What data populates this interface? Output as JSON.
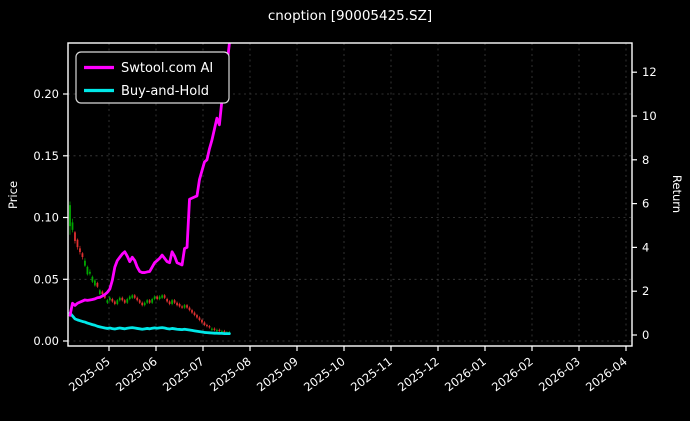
{
  "title": "cnoption [90005425.SZ]",
  "colors": {
    "background": "#000000",
    "text": "#ffffff",
    "grid": "#3f3f3f",
    "spine": "#ffffff",
    "candle_up": "#00a800",
    "candle_down": "#e03030",
    "strategy_line": "#ff00ff",
    "buyhold_line": "#00e8e8",
    "legend_border": "#d9d9d9"
  },
  "legend": {
    "position": "upper-left",
    "items": [
      {
        "label": "Swtool.com AI",
        "color": "#ff00ff"
      },
      {
        "label": "Buy-and-Hold",
        "color": "#00e8e8"
      }
    ]
  },
  "axes": {
    "left_label": "Price",
    "right_label": "Return",
    "left_ticks": [
      "0.00",
      "0.05",
      "0.10",
      "0.15",
      "0.20"
    ],
    "left_tick_values": [
      0.0,
      0.05,
      0.1,
      0.15,
      0.2
    ],
    "right_ticks": [
      "0",
      "2",
      "4",
      "6",
      "8",
      "10",
      "12"
    ],
    "right_tick_values": [
      0,
      2,
      4,
      6,
      8,
      10,
      12
    ],
    "x_ticks": [
      "2025-05",
      "2025-06",
      "2025-07",
      "2025-08",
      "2025-09",
      "2025-10",
      "2025-11",
      "2025-12",
      "2026-01",
      "2026-02",
      "2026-03",
      "2026-04"
    ]
  },
  "chart_data": {
    "type": "candlestick+line",
    "title": "cnoption [90005425.SZ]",
    "xlabel": "",
    "x_tick_labels": [
      "2025-05",
      "2025-06",
      "2025-07",
      "2025-08",
      "2025-09",
      "2025-10",
      "2025-11",
      "2025-12",
      "2026-01",
      "2026-02",
      "2026-03",
      "2026-04"
    ],
    "y_left": {
      "label": "Price",
      "ticks": [
        0.0,
        0.05,
        0.1,
        0.15,
        0.2
      ],
      "lim": [
        -0.004,
        0.241
      ]
    },
    "y_right": {
      "label": "Return",
      "ticks": [
        0,
        2,
        4,
        6,
        8,
        10,
        12
      ],
      "lim": [
        -0.5,
        13.8
      ]
    },
    "grid": true,
    "legend_position": "upper left",
    "data_span_note": "price candles and both return lines span approx 2025-04-22 to 2025-07-25; axis extends to 2026-04",
    "candles_ohlc": [
      [
        0.093,
        0.113,
        0.086,
        0.11
      ],
      [
        0.09,
        0.099,
        0.088,
        0.096
      ],
      [
        0.088,
        0.089,
        0.079,
        0.081
      ],
      [
        0.082,
        0.083,
        0.074,
        0.076
      ],
      [
        0.075,
        0.077,
        0.07,
        0.072
      ],
      [
        0.071,
        0.072,
        0.066,
        0.068
      ],
      [
        0.061,
        0.067,
        0.06,
        0.065
      ],
      [
        0.054,
        0.061,
        0.053,
        0.06
      ],
      [
        0.0545,
        0.058,
        0.053,
        0.056
      ],
      [
        0.048,
        0.053,
        0.047,
        0.052
      ],
      [
        0.045,
        0.05,
        0.044,
        0.049
      ],
      [
        0.047,
        0.048,
        0.043,
        0.044
      ],
      [
        0.038,
        0.042,
        0.037,
        0.041
      ],
      [
        0.04,
        0.041,
        0.037,
        0.038
      ],
      [
        0.037,
        0.038,
        0.034,
        0.035
      ],
      [
        0.031,
        0.034,
        0.03,
        0.033
      ],
      [
        0.033,
        0.036,
        0.032,
        0.035
      ],
      [
        0.034,
        0.035,
        0.031,
        0.032
      ],
      [
        0.032,
        0.033,
        0.029,
        0.03
      ],
      [
        0.03,
        0.034,
        0.029,
        0.033
      ],
      [
        0.033,
        0.036,
        0.032,
        0.035
      ],
      [
        0.035,
        0.036,
        0.032,
        0.033
      ],
      [
        0.033,
        0.034,
        0.03,
        0.031
      ],
      [
        0.031,
        0.035,
        0.03,
        0.034
      ],
      [
        0.034,
        0.037,
        0.033,
        0.036
      ],
      [
        0.035,
        0.038,
        0.034,
        0.037
      ],
      [
        0.037,
        0.038,
        0.034,
        0.035
      ],
      [
        0.035,
        0.036,
        0.032,
        0.033
      ],
      [
        0.033,
        0.034,
        0.03,
        0.031
      ],
      [
        0.031,
        0.032,
        0.028,
        0.029
      ],
      [
        0.029,
        0.032,
        0.028,
        0.031
      ],
      [
        0.031,
        0.034,
        0.03,
        0.033
      ],
      [
        0.033,
        0.034,
        0.03,
        0.031
      ],
      [
        0.031,
        0.035,
        0.03,
        0.034
      ],
      [
        0.034,
        0.037,
        0.033,
        0.036
      ],
      [
        0.036,
        0.037,
        0.033,
        0.034
      ],
      [
        0.034,
        0.037,
        0.033,
        0.036
      ],
      [
        0.035,
        0.038,
        0.034,
        0.037
      ],
      [
        0.037,
        0.038,
        0.034,
        0.035
      ],
      [
        0.034,
        0.035,
        0.031,
        0.032
      ],
      [
        0.032,
        0.033,
        0.029,
        0.03
      ],
      [
        0.03,
        0.034,
        0.029,
        0.033
      ],
      [
        0.033,
        0.034,
        0.03,
        0.031
      ],
      [
        0.031,
        0.032,
        0.028,
        0.029
      ],
      [
        0.03,
        0.031,
        0.027,
        0.028
      ],
      [
        0.028,
        0.029,
        0.026,
        0.027
      ],
      [
        0.027,
        0.03,
        0.026,
        0.029
      ],
      [
        0.029,
        0.03,
        0.026,
        0.027
      ],
      [
        0.027,
        0.028,
        0.024,
        0.025
      ],
      [
        0.025,
        0.026,
        0.022,
        0.023
      ],
      [
        0.023,
        0.024,
        0.02,
        0.021
      ],
      [
        0.021,
        0.022,
        0.018,
        0.019
      ],
      [
        0.019,
        0.02,
        0.016,
        0.017
      ],
      [
        0.017,
        0.018,
        0.014,
        0.015
      ],
      [
        0.015,
        0.016,
        0.012,
        0.013
      ],
      [
        0.013,
        0.014,
        0.011,
        0.012
      ],
      [
        0.012,
        0.013,
        0.01,
        0.011
      ],
      [
        0.009,
        0.011,
        0.008,
        0.01
      ],
      [
        0.01,
        0.011,
        0.008,
        0.009
      ],
      [
        0.008,
        0.01,
        0.007,
        0.009
      ],
      [
        0.009,
        0.01,
        0.007,
        0.008
      ],
      [
        0.007,
        0.009,
        0.006,
        0.008
      ],
      [
        0.008,
        0.009,
        0.006,
        0.007
      ],
      [
        0.006,
        0.008,
        0.005,
        0.007
      ],
      [
        0.0065,
        0.008,
        0.006,
        0.007
      ]
    ],
    "series": [
      {
        "name": "Swtool.com AI",
        "axis": "right",
        "color": "#ff00ff",
        "values": [
          0.9,
          1.45,
          1.35,
          1.45,
          1.5,
          1.55,
          1.6,
          1.58,
          1.6,
          1.62,
          1.65,
          1.7,
          1.72,
          1.78,
          1.85,
          1.95,
          2.1,
          2.5,
          3.1,
          3.4,
          3.55,
          3.7,
          3.8,
          3.6,
          3.35,
          3.55,
          3.4,
          3.1,
          2.9,
          2.85,
          2.85,
          2.88,
          2.9,
          3.1,
          3.3,
          3.4,
          3.5,
          3.65,
          3.5,
          3.35,
          3.3,
          3.8,
          3.6,
          3.3,
          3.25,
          3.2,
          3.95,
          4.0,
          6.2,
          6.25,
          6.3,
          6.35,
          7.1,
          7.5,
          7.9,
          8.0,
          8.5,
          8.9,
          9.4,
          9.9,
          9.6,
          10.7,
          11.5,
          12.3,
          13.3
        ]
      },
      {
        "name": "Buy-and-Hold",
        "axis": "right",
        "color": "#00e8e8",
        "values": [
          1.0,
          0.873,
          0.736,
          0.691,
          0.655,
          0.618,
          0.591,
          0.545,
          0.509,
          0.473,
          0.445,
          0.4,
          0.373,
          0.345,
          0.318,
          0.3,
          0.318,
          0.291,
          0.273,
          0.3,
          0.318,
          0.3,
          0.282,
          0.309,
          0.327,
          0.336,
          0.318,
          0.3,
          0.282,
          0.264,
          0.282,
          0.3,
          0.282,
          0.309,
          0.327,
          0.309,
          0.327,
          0.336,
          0.318,
          0.291,
          0.273,
          0.3,
          0.282,
          0.264,
          0.255,
          0.245,
          0.264,
          0.245,
          0.227,
          0.209,
          0.191,
          0.173,
          0.155,
          0.136,
          0.118,
          0.109,
          0.1,
          0.091,
          0.082,
          0.082,
          0.073,
          0.073,
          0.064,
          0.064,
          0.064
        ]
      }
    ]
  }
}
